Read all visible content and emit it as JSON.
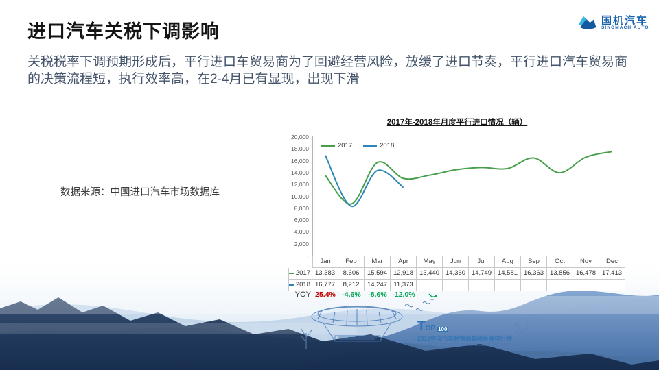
{
  "slide_title": "进口汽车关税下调影响",
  "logo": {
    "name": "国机汽车",
    "subtitle": "SINOMACH AUTO",
    "accent_light": "#39b4e6",
    "accent_dark": "#1761ad"
  },
  "body": {
    "line1": "关税税率下调预期形成后，平行进口车贸易商为了回避经营风险，放缓了进口节奏，平行进口汽车贸易商",
    "line2": "的决策流程短，执行效率高，在2-4月已有显现，出现下滑"
  },
  "source_note": "数据来源：中国进口汽车市场数据库",
  "chart_data": {
    "type": "line",
    "title": "2017年-2018年月度平行进口情况（辆）",
    "categories": [
      "Jan",
      "Feb",
      "Mar",
      "Apr",
      "May",
      "Jun",
      "Jul",
      "Aug",
      "Sep",
      "Oct",
      "Nov",
      "Dec"
    ],
    "series": [
      {
        "name": "2017",
        "color": "#46a049",
        "values": [
          13383,
          8606,
          15594,
          12918,
          13440,
          14360,
          14749,
          14581,
          16363,
          13856,
          16478,
          17413
        ]
      },
      {
        "name": "2018",
        "color": "#2b87b8",
        "values": [
          16777,
          8212,
          14247,
          11373
        ]
      }
    ],
    "ylim": [
      0,
      20000
    ],
    "ytick_interval": 2000,
    "ytick_labels": [
      "20,000",
      "18,000",
      "16,000",
      "14,000",
      "12,000",
      "10,000",
      "8,000",
      "6,000",
      "4,000",
      "2,000",
      "-"
    ],
    "legend_position": "top-left-inside",
    "grid": false,
    "smooth": true
  },
  "table": {
    "columns": [
      "Jan",
      "Feb",
      "Mar",
      "Apr",
      "May",
      "Jun",
      "Jul",
      "Aug",
      "Sep",
      "Oct",
      "Nov",
      "Dec"
    ],
    "rows": [
      {
        "label": "2017",
        "color": "#46a049",
        "cells": [
          "13,383",
          "8,606",
          "15,594",
          "12,918",
          "13,440",
          "14,360",
          "14,749",
          "14,581",
          "16,363",
          "13,856",
          "16,478",
          "17,413"
        ]
      },
      {
        "label": "2018",
        "color": "#2b87b8",
        "cells": [
          "16,777",
          "8,212",
          "14,247",
          "11,373",
          "",
          "",
          "",
          "",
          "",
          "",
          "",
          ""
        ]
      }
    ]
  },
  "yoy": {
    "label": "YOY",
    "values": [
      {
        "text": "25.4%",
        "color": "#c00000"
      },
      {
        "text": "-4.6%",
        "color": "#00a651"
      },
      {
        "text": "-8.6%",
        "color": "#00a651"
      },
      {
        "text": "-12.0%",
        "color": "#00a651"
      }
    ]
  },
  "emblem": {
    "t": "T",
    "op": "OP",
    "num": "100",
    "line1": "2018中国汽车经销商集团百强排行榜",
    "line2": "LIST OF CHINA AUTOMOBILE DEALER GROUP 2018"
  }
}
